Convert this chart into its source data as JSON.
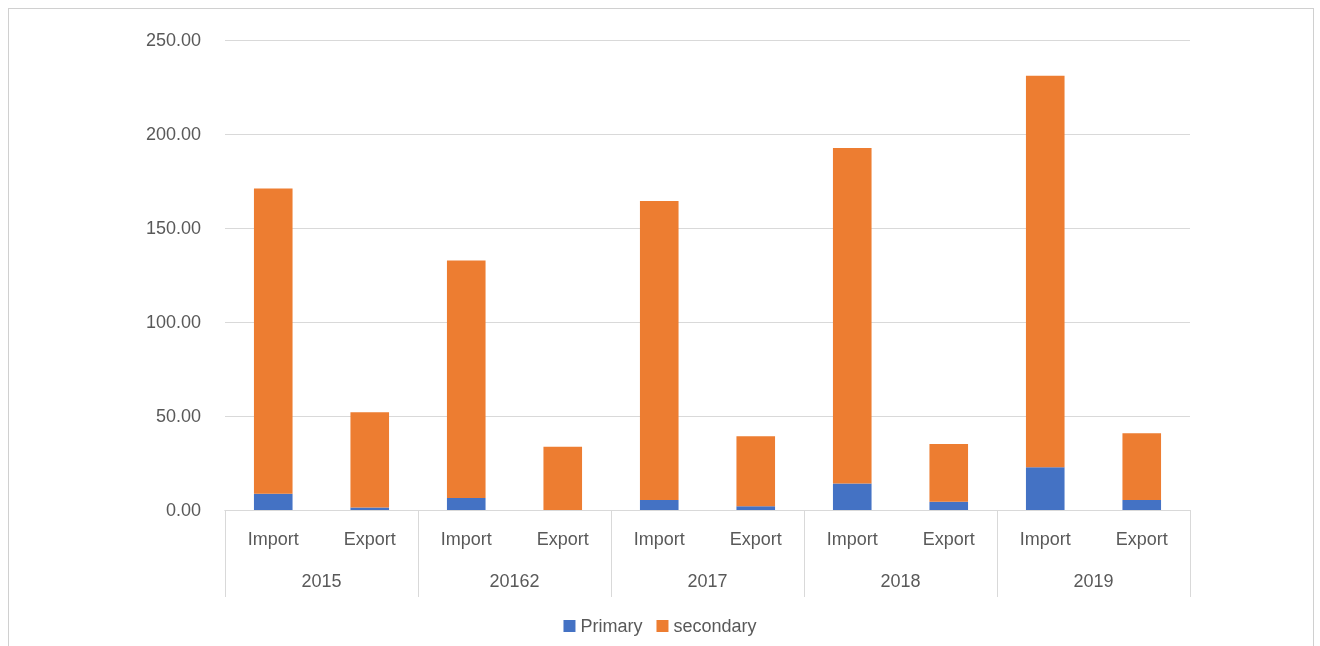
{
  "chart_data": {
    "type": "bar",
    "stacked": true,
    "categories": [
      "Import",
      "Export",
      "Import",
      "Export",
      "Import",
      "Export",
      "Import",
      "Export",
      "Import",
      "Export"
    ],
    "series": [
      {
        "name": "Primary",
        "color": "#4472c4",
        "values": [
          8.7,
          1.3,
          6.4,
          null,
          5.3,
          2.0,
          14.1,
          4.4,
          22.8,
          5.3
        ]
      },
      {
        "name": "secondary",
        "color": "#ed7d31",
        "values": [
          162.3,
          50.7,
          126.3,
          33.7,
          159.0,
          37.2,
          178.4,
          30.7,
          208.2,
          35.5
        ]
      }
    ],
    "annotations": [
      "2015",
      "20162",
      "2017",
      "2018",
      "2019"
    ],
    "ylim": [
      0,
      250
    ],
    "yticks": [
      {
        "value": 0,
        "label": "0.00"
      },
      {
        "value": 50,
        "label": "50.00"
      },
      {
        "value": 100,
        "label": "100.00"
      },
      {
        "value": 150,
        "label": "150.00"
      },
      {
        "value": 200,
        "label": "200.00"
      },
      {
        "value": 250,
        "label": "250.00"
      }
    ],
    "grid": "y",
    "legend": "bottom"
  }
}
